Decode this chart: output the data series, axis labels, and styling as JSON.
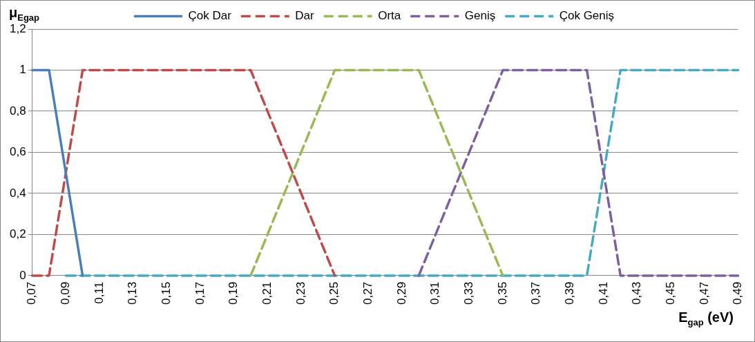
{
  "chart_data": {
    "type": "line",
    "ylabel": "μ$_{Egap}$",
    "xlabel": "E$_{gap}$ (eV)",
    "categories": [
      "0,07",
      null,
      "0,09",
      null,
      "0,11",
      null,
      "0,13",
      null,
      "0,15",
      null,
      "0,17",
      null,
      "0,19",
      null,
      "0,21",
      null,
      "0,23",
      null,
      "0,25",
      null,
      "0,27",
      null,
      "0,29",
      null,
      "0,31",
      null,
      "0,33",
      null,
      "0,35",
      null,
      "0,37",
      null,
      "0,39",
      null,
      "0,41",
      null,
      "0,43",
      null,
      "0,45",
      null,
      "0,47",
      null,
      "0,49"
    ],
    "series": [
      {
        "name": "Çok Dar",
        "color": "#4a7ebb",
        "line_style": "solid",
        "values": [
          1,
          1,
          0.5,
          0,
          null,
          null,
          null,
          null,
          null,
          null,
          null,
          null,
          null,
          null,
          null,
          null,
          null,
          null,
          null,
          null,
          null,
          null,
          null,
          null,
          null,
          null,
          null,
          null,
          null,
          null,
          null,
          null,
          null,
          null,
          null,
          null,
          null,
          null,
          null,
          null,
          null,
          null,
          null
        ]
      },
      {
        "name": "Dar",
        "color": "#be4b48",
        "line_style": "dashed",
        "values": [
          0,
          0,
          0.5,
          1,
          1,
          1,
          1,
          1,
          1,
          1,
          1,
          1,
          1,
          1,
          0.8,
          0.6,
          0.4,
          0.2,
          0,
          null,
          null,
          null,
          null,
          null,
          null,
          null,
          null,
          null,
          null,
          null,
          null,
          null,
          null,
          null,
          null,
          null,
          null,
          null,
          null,
          null,
          null,
          null,
          null
        ]
      },
      {
        "name": "Orta",
        "color": "#98b954",
        "line_style": "dashed",
        "values": [
          null,
          null,
          null,
          null,
          null,
          null,
          null,
          null,
          null,
          null,
          null,
          null,
          null,
          0,
          0.2,
          0.4,
          0.6,
          0.8,
          1,
          1,
          1,
          1,
          1,
          1,
          0.8,
          0.6,
          0.4,
          0.2,
          0,
          null,
          null,
          null,
          null,
          null,
          null,
          null,
          null,
          null,
          null,
          null,
          null,
          null,
          null
        ]
      },
      {
        "name": "Geniş",
        "color": "#7d60a0",
        "line_style": "dashed",
        "values": [
          null,
          null,
          null,
          null,
          null,
          null,
          null,
          null,
          null,
          null,
          null,
          null,
          null,
          null,
          null,
          null,
          null,
          null,
          null,
          null,
          null,
          null,
          null,
          0,
          0.2,
          0.4,
          0.6,
          0.8,
          1,
          1,
          1,
          1,
          1,
          1,
          0.5,
          0,
          0,
          0,
          0,
          0,
          0,
          0,
          0
        ]
      },
      {
        "name": "Çok Geniş",
        "color": "#46aac5",
        "line_style": "dashed",
        "values": [
          null,
          null,
          0,
          0,
          0,
          0,
          0,
          0,
          0,
          0,
          0,
          0,
          0,
          0,
          0,
          0,
          0,
          0,
          0,
          0,
          0,
          0,
          0,
          0,
          0,
          0,
          0,
          0,
          0,
          0,
          0,
          0,
          0,
          0,
          0.5,
          1,
          1,
          1,
          1,
          1,
          1,
          1,
          1
        ]
      }
    ],
    "ylim": [
      0,
      1.2
    ],
    "yticks": [
      0,
      {
        "value": 0.2,
        "label": "0,2"
      },
      {
        "value": 0.4,
        "label": "0,4"
      },
      {
        "value": 0.6,
        "label": "0,6"
      },
      {
        "value": 0.8,
        "label": "0,8"
      },
      1,
      {
        "value": 1.2,
        "label": "1,2"
      }
    ],
    "grid": "y",
    "legend": "top",
    "marker": "none"
  }
}
